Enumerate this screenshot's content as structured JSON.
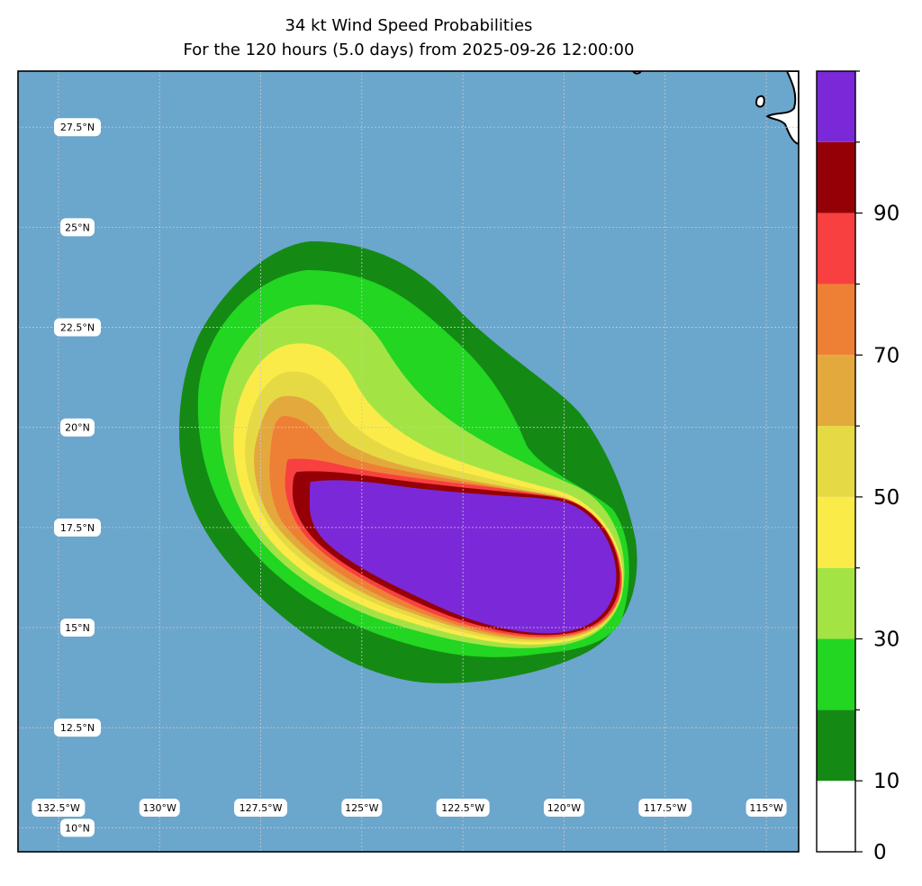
{
  "title": {
    "line1": "34 kt Wind Speed Probabilities",
    "line2": "For the 120 hours (5.0 days) from 2025-09-26 12:00:00"
  },
  "map": {
    "ocean_color": "#6ba6cc",
    "land_color": "#ffffff",
    "lat_range_deg": [
      9.4,
      28.9
    ],
    "lon_range_deg": [
      -133.5,
      -114.2
    ],
    "lat_labels": [
      "27.5°N",
      "25°N",
      "22.5°N",
      "20°N",
      "17.5°N",
      "15°N",
      "12.5°N",
      "10°N"
    ],
    "lon_labels": [
      "132.5°W",
      "130°W",
      "127.5°W",
      "125°W",
      "122.5°W",
      "120°W",
      "117.5°W",
      "115°W"
    ]
  },
  "colorbar": {
    "bins": [
      {
        "from": 0,
        "to": 10,
        "color": "#ffffff"
      },
      {
        "from": 10,
        "to": 20,
        "color": "#148a14"
      },
      {
        "from": 20,
        "to": 30,
        "color": "#22d622"
      },
      {
        "from": 30,
        "to": 40,
        "color": "#a3e444"
      },
      {
        "from": 40,
        "to": 50,
        "color": "#faeb48"
      },
      {
        "from": 50,
        "to": 60,
        "color": "#e6da44"
      },
      {
        "from": 60,
        "to": 70,
        "color": "#e4a93c"
      },
      {
        "from": 70,
        "to": 80,
        "color": "#ee8035"
      },
      {
        "from": 80,
        "to": 90,
        "color": "#f84040"
      },
      {
        "from": 90,
        "to": 100,
        "color": "#950006"
      },
      {
        "from": 100,
        "to": 110,
        "color": "#7b28d9"
      }
    ],
    "tick_labels": [
      "0",
      "10",
      "30",
      "50",
      "70",
      "90"
    ]
  }
}
